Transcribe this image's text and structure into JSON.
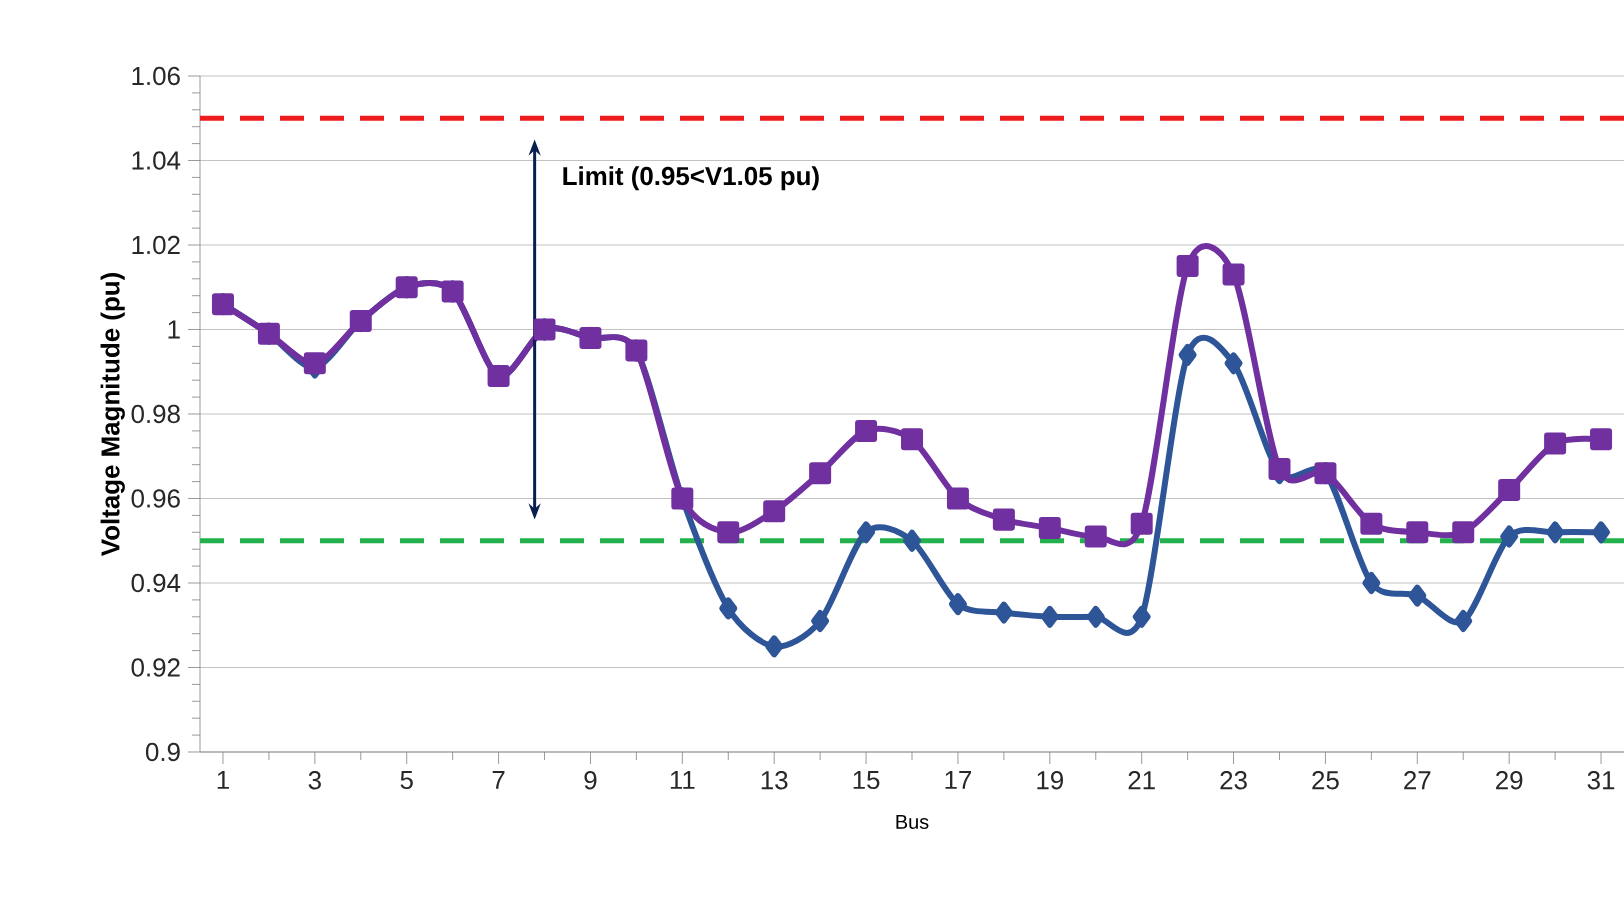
{
  "chart_data": {
    "type": "line",
    "xlabel": "Bus",
    "ylabel": "Voltage Magnitude (pu)",
    "x": [
      1,
      2,
      3,
      4,
      5,
      6,
      7,
      8,
      9,
      10,
      11,
      12,
      13,
      14,
      15,
      16,
      17,
      18,
      19,
      20,
      21,
      22,
      23,
      24,
      25,
      26,
      27,
      28,
      29,
      30,
      31
    ],
    "series": [
      {
        "color": "#2e5597",
        "marker": "diamond",
        "values": [
          1.006,
          0.999,
          0.991,
          1.002,
          1.01,
          1.009,
          0.989,
          1.0,
          0.998,
          0.995,
          0.96,
          0.934,
          0.925,
          0.931,
          0.952,
          0.95,
          0.935,
          0.933,
          0.932,
          0.932,
          0.932,
          0.994,
          0.992,
          0.966,
          0.966,
          0.94,
          0.937,
          0.931,
          0.951,
          0.952,
          0.952
        ]
      },
      {
        "color": "#7030a0",
        "marker": "square",
        "values": [
          1.006,
          0.999,
          0.992,
          1.002,
          1.01,
          1.009,
          0.989,
          1.0,
          0.998,
          0.995,
          0.96,
          0.952,
          0.957,
          0.966,
          0.976,
          0.974,
          0.96,
          0.955,
          0.953,
          0.951,
          0.954,
          1.015,
          1.013,
          0.967,
          0.966,
          0.954,
          0.952,
          0.952,
          0.962,
          0.973,
          0.974
        ]
      }
    ],
    "xlim": [
      0.5,
      31.5
    ],
    "xticks": [
      1,
      3,
      5,
      7,
      9,
      11,
      13,
      15,
      17,
      19,
      21,
      23,
      25,
      27,
      29,
      31
    ],
    "ylim": [
      0.9,
      1.06
    ],
    "yticks": [
      {
        "value": 0.9,
        "label": "0.9"
      },
      {
        "value": 0.92,
        "label": "0.92"
      },
      {
        "value": 0.94,
        "label": "0.94"
      },
      {
        "value": 0.96,
        "label": "0.96"
      },
      {
        "value": 0.98,
        "label": "0.98"
      },
      {
        "value": 1.0,
        "label": "1"
      },
      {
        "value": 1.02,
        "label": "1.02"
      },
      {
        "value": 1.04,
        "label": "1.04"
      },
      {
        "value": 1.06,
        "label": "1.06"
      }
    ],
    "grid": "y",
    "line_style": "solid",
    "ref_lines": [
      {
        "axis": "y",
        "value": 1.05,
        "color": "#ee1c1c",
        "line_style": "dashed"
      },
      {
        "axis": "y",
        "value": 0.95,
        "color": "#22b14c",
        "line_style": "dashed"
      }
    ],
    "annotations": [
      "Limit (0.95<V1.05 pu)"
    ]
  }
}
